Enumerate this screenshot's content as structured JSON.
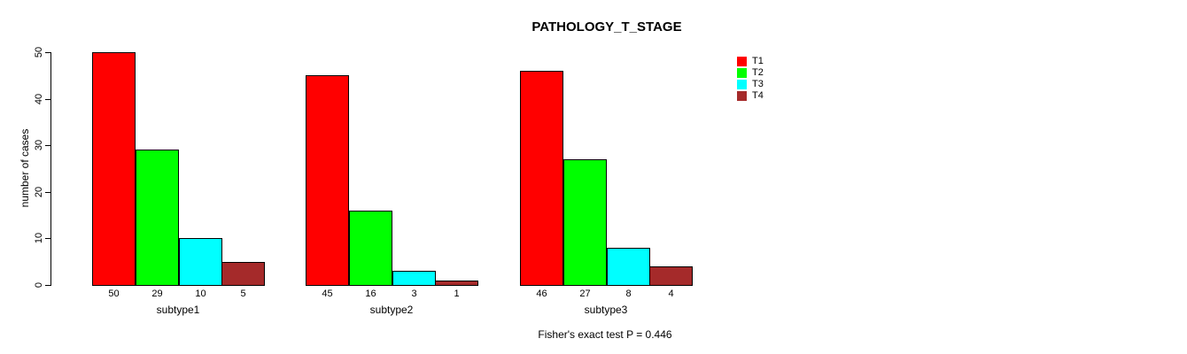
{
  "title": "PATHOLOGY_T_STAGE",
  "footer_note": "Fisher's exact test P = 0.446",
  "y_axis": {
    "label": "number of cases",
    "ticks": [
      0,
      10,
      20,
      30,
      40,
      50
    ]
  },
  "legend": {
    "position": "top-right",
    "entries": [
      {
        "label": "T1",
        "color": "#FF0000"
      },
      {
        "label": "T2",
        "color": "#00FF00"
      },
      {
        "label": "T3",
        "color": "#00FFFF"
      },
      {
        "label": "T4",
        "color": "#A52A2A"
      }
    ]
  },
  "chart_data": {
    "type": "bar",
    "title": "PATHOLOGY_T_STAGE",
    "xlabel": "",
    "ylabel": "number of cases",
    "ylim": [
      0,
      50
    ],
    "yticks": [
      0,
      10,
      20,
      30,
      40,
      50
    ],
    "categories": [
      "subtype1",
      "subtype2",
      "subtype3"
    ],
    "series": [
      {
        "name": "T1",
        "color": "#FF0000",
        "values": [
          50,
          45,
          46
        ]
      },
      {
        "name": "T2",
        "color": "#00FF00",
        "values": [
          29,
          16,
          27
        ]
      },
      {
        "name": "T3",
        "color": "#00FFFF",
        "values": [
          10,
          3,
          8
        ]
      },
      {
        "name": "T4",
        "color": "#A52A2A",
        "values": [
          5,
          1,
          4
        ]
      }
    ],
    "bar_value_labels": {
      "subtype1": [
        50,
        29,
        10,
        5
      ],
      "subtype2": [
        45,
        16,
        3,
        1
      ],
      "subtype3": [
        46,
        27,
        8,
        4
      ]
    },
    "grid": false,
    "legend_position": "top-right",
    "annotation": "Fisher's exact test P = 0.446"
  }
}
